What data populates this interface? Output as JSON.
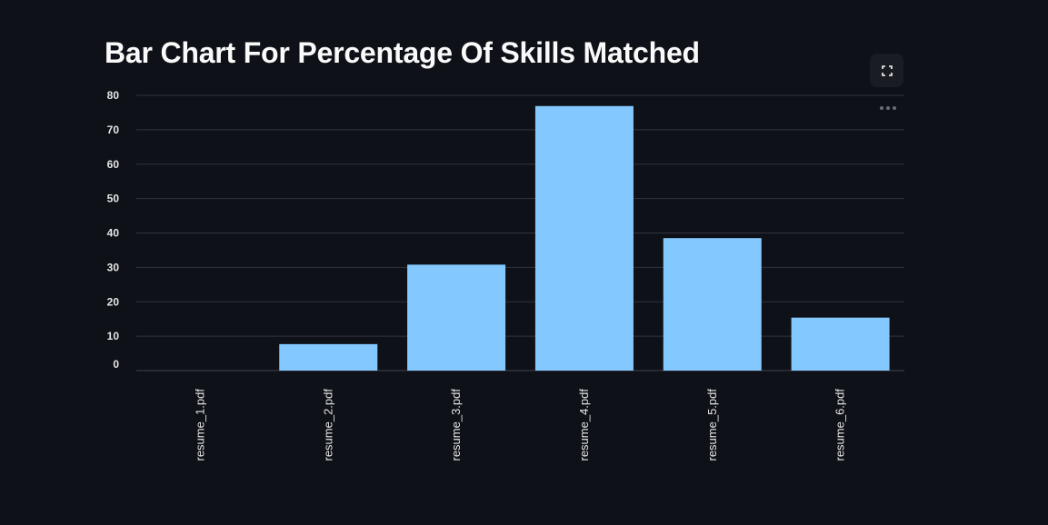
{
  "chart_data": {
    "type": "bar",
    "title": "Bar Chart For Percentage Of Skills Matched",
    "categories": [
      "resume_1.pdf",
      "resume_2.pdf",
      "resume_3.pdf",
      "resume_4.pdf",
      "resume_5.pdf",
      "resume_6.pdf"
    ],
    "values": [
      0,
      7.7,
      30.8,
      76.9,
      38.5,
      15.4
    ],
    "ylim": [
      0,
      80
    ],
    "yticks": [
      0,
      10,
      20,
      30,
      40,
      50,
      60,
      70,
      80
    ],
    "xlabel": "",
    "ylabel": "",
    "grid": true,
    "colors": {
      "bar": "#83c9ff",
      "grid": "#31333f",
      "background": "#0e1117",
      "text": "#fafafa"
    }
  },
  "toolbar": {
    "fullscreen_icon": "fullscreen-icon",
    "menu_icon": "more-horizontal-icon"
  }
}
